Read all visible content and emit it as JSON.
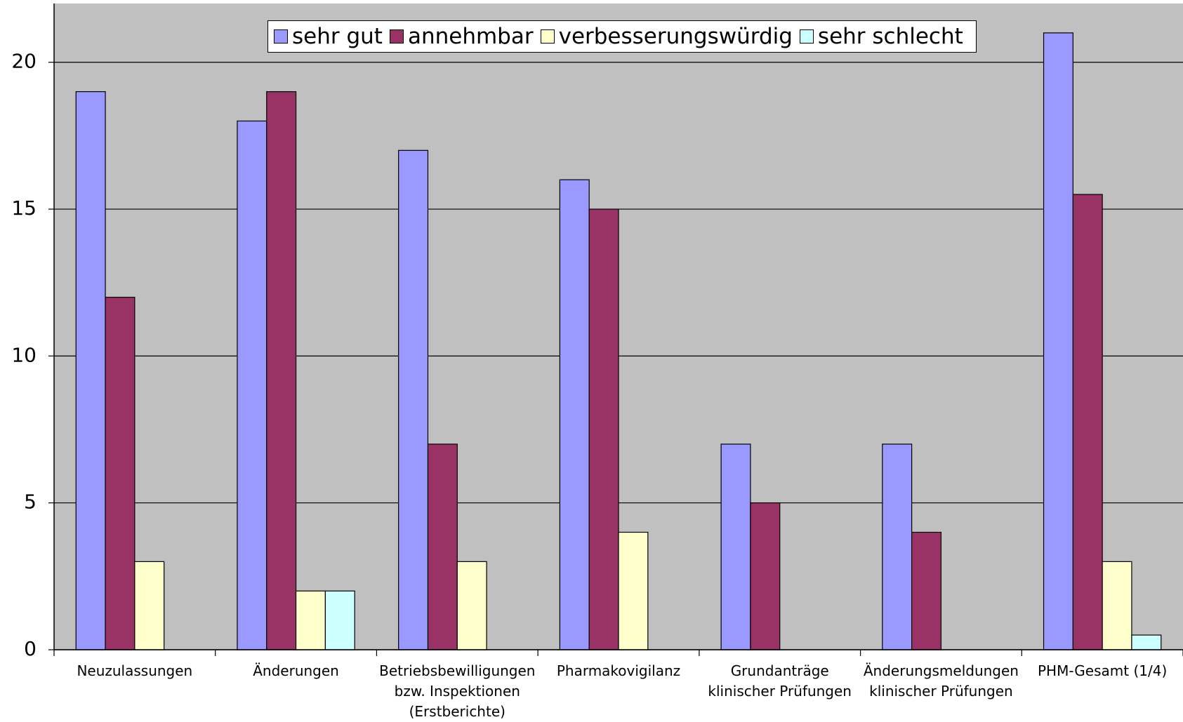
{
  "chart_data": {
    "type": "bar",
    "categories": [
      "Neuzulassungen",
      "Änderungen",
      "Betriebsbewilligungen\nbzw. Inspektionen\n(Erstberichte)",
      "Pharmakovigilanz",
      "Grundanträge\nklinischer Prüfungen",
      "Änderungsmeldungen\nklinischer Prüfungen",
      "PHM-Gesamt (1/4)"
    ],
    "series": [
      {
        "name": "sehr gut",
        "color": "#9999ff",
        "values": [
          19,
          18,
          17,
          16,
          7,
          7,
          21
        ]
      },
      {
        "name": "annehmbar",
        "color": "#993366",
        "values": [
          12,
          19,
          7,
          15,
          5,
          4,
          15.5
        ]
      },
      {
        "name": "verbesserungswürdig",
        "color": "#ffffcc",
        "values": [
          3,
          2,
          3,
          4,
          0,
          0,
          3
        ]
      },
      {
        "name": "sehr schlecht",
        "color": "#ccffff",
        "values": [
          0,
          2,
          0,
          0,
          0,
          0,
          0.5
        ]
      }
    ],
    "ylim": [
      0,
      22
    ],
    "yticks": [
      0,
      5,
      10,
      15,
      20
    ],
    "grid": true,
    "legend": "top",
    "background": "#c0c0c0"
  }
}
